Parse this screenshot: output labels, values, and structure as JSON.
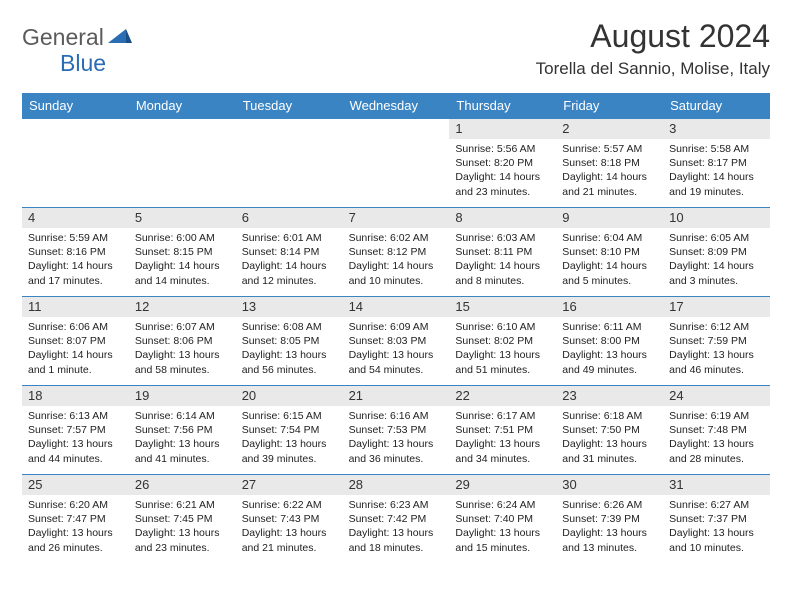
{
  "logo": {
    "general": "General",
    "blue": "Blue"
  },
  "title": "August 2024",
  "location": "Torella del Sannio, Molise, Italy",
  "colors": {
    "header_bg": "#3b84c4",
    "header_text": "#ffffff",
    "row_divider": "#3b84c4",
    "daynum_bg": "#e9e9e9",
    "logo_general": "#5b5b5b",
    "logo_blue": "#2a6db2",
    "body_text": "#222222",
    "page_bg": "#ffffff"
  },
  "daysOfWeek": [
    "Sunday",
    "Monday",
    "Tuesday",
    "Wednesday",
    "Thursday",
    "Friday",
    "Saturday"
  ],
  "weeks": [
    [
      {
        "empty": true
      },
      {
        "empty": true
      },
      {
        "empty": true
      },
      {
        "empty": true
      },
      {
        "num": "1",
        "sunrise": "Sunrise: 5:56 AM",
        "sunset": "Sunset: 8:20 PM",
        "day1": "Daylight: 14 hours",
        "day2": "and 23 minutes."
      },
      {
        "num": "2",
        "sunrise": "Sunrise: 5:57 AM",
        "sunset": "Sunset: 8:18 PM",
        "day1": "Daylight: 14 hours",
        "day2": "and 21 minutes."
      },
      {
        "num": "3",
        "sunrise": "Sunrise: 5:58 AM",
        "sunset": "Sunset: 8:17 PM",
        "day1": "Daylight: 14 hours",
        "day2": "and 19 minutes."
      }
    ],
    [
      {
        "num": "4",
        "sunrise": "Sunrise: 5:59 AM",
        "sunset": "Sunset: 8:16 PM",
        "day1": "Daylight: 14 hours",
        "day2": "and 17 minutes."
      },
      {
        "num": "5",
        "sunrise": "Sunrise: 6:00 AM",
        "sunset": "Sunset: 8:15 PM",
        "day1": "Daylight: 14 hours",
        "day2": "and 14 minutes."
      },
      {
        "num": "6",
        "sunrise": "Sunrise: 6:01 AM",
        "sunset": "Sunset: 8:14 PM",
        "day1": "Daylight: 14 hours",
        "day2": "and 12 minutes."
      },
      {
        "num": "7",
        "sunrise": "Sunrise: 6:02 AM",
        "sunset": "Sunset: 8:12 PM",
        "day1": "Daylight: 14 hours",
        "day2": "and 10 minutes."
      },
      {
        "num": "8",
        "sunrise": "Sunrise: 6:03 AM",
        "sunset": "Sunset: 8:11 PM",
        "day1": "Daylight: 14 hours",
        "day2": "and 8 minutes."
      },
      {
        "num": "9",
        "sunrise": "Sunrise: 6:04 AM",
        "sunset": "Sunset: 8:10 PM",
        "day1": "Daylight: 14 hours",
        "day2": "and 5 minutes."
      },
      {
        "num": "10",
        "sunrise": "Sunrise: 6:05 AM",
        "sunset": "Sunset: 8:09 PM",
        "day1": "Daylight: 14 hours",
        "day2": "and 3 minutes."
      }
    ],
    [
      {
        "num": "11",
        "sunrise": "Sunrise: 6:06 AM",
        "sunset": "Sunset: 8:07 PM",
        "day1": "Daylight: 14 hours",
        "day2": "and 1 minute."
      },
      {
        "num": "12",
        "sunrise": "Sunrise: 6:07 AM",
        "sunset": "Sunset: 8:06 PM",
        "day1": "Daylight: 13 hours",
        "day2": "and 58 minutes."
      },
      {
        "num": "13",
        "sunrise": "Sunrise: 6:08 AM",
        "sunset": "Sunset: 8:05 PM",
        "day1": "Daylight: 13 hours",
        "day2": "and 56 minutes."
      },
      {
        "num": "14",
        "sunrise": "Sunrise: 6:09 AM",
        "sunset": "Sunset: 8:03 PM",
        "day1": "Daylight: 13 hours",
        "day2": "and 54 minutes."
      },
      {
        "num": "15",
        "sunrise": "Sunrise: 6:10 AM",
        "sunset": "Sunset: 8:02 PM",
        "day1": "Daylight: 13 hours",
        "day2": "and 51 minutes."
      },
      {
        "num": "16",
        "sunrise": "Sunrise: 6:11 AM",
        "sunset": "Sunset: 8:00 PM",
        "day1": "Daylight: 13 hours",
        "day2": "and 49 minutes."
      },
      {
        "num": "17",
        "sunrise": "Sunrise: 6:12 AM",
        "sunset": "Sunset: 7:59 PM",
        "day1": "Daylight: 13 hours",
        "day2": "and 46 minutes."
      }
    ],
    [
      {
        "num": "18",
        "sunrise": "Sunrise: 6:13 AM",
        "sunset": "Sunset: 7:57 PM",
        "day1": "Daylight: 13 hours",
        "day2": "and 44 minutes."
      },
      {
        "num": "19",
        "sunrise": "Sunrise: 6:14 AM",
        "sunset": "Sunset: 7:56 PM",
        "day1": "Daylight: 13 hours",
        "day2": "and 41 minutes."
      },
      {
        "num": "20",
        "sunrise": "Sunrise: 6:15 AM",
        "sunset": "Sunset: 7:54 PM",
        "day1": "Daylight: 13 hours",
        "day2": "and 39 minutes."
      },
      {
        "num": "21",
        "sunrise": "Sunrise: 6:16 AM",
        "sunset": "Sunset: 7:53 PM",
        "day1": "Daylight: 13 hours",
        "day2": "and 36 minutes."
      },
      {
        "num": "22",
        "sunrise": "Sunrise: 6:17 AM",
        "sunset": "Sunset: 7:51 PM",
        "day1": "Daylight: 13 hours",
        "day2": "and 34 minutes."
      },
      {
        "num": "23",
        "sunrise": "Sunrise: 6:18 AM",
        "sunset": "Sunset: 7:50 PM",
        "day1": "Daylight: 13 hours",
        "day2": "and 31 minutes."
      },
      {
        "num": "24",
        "sunrise": "Sunrise: 6:19 AM",
        "sunset": "Sunset: 7:48 PM",
        "day1": "Daylight: 13 hours",
        "day2": "and 28 minutes."
      }
    ],
    [
      {
        "num": "25",
        "sunrise": "Sunrise: 6:20 AM",
        "sunset": "Sunset: 7:47 PM",
        "day1": "Daylight: 13 hours",
        "day2": "and 26 minutes."
      },
      {
        "num": "26",
        "sunrise": "Sunrise: 6:21 AM",
        "sunset": "Sunset: 7:45 PM",
        "day1": "Daylight: 13 hours",
        "day2": "and 23 minutes."
      },
      {
        "num": "27",
        "sunrise": "Sunrise: 6:22 AM",
        "sunset": "Sunset: 7:43 PM",
        "day1": "Daylight: 13 hours",
        "day2": "and 21 minutes."
      },
      {
        "num": "28",
        "sunrise": "Sunrise: 6:23 AM",
        "sunset": "Sunset: 7:42 PM",
        "day1": "Daylight: 13 hours",
        "day2": "and 18 minutes."
      },
      {
        "num": "29",
        "sunrise": "Sunrise: 6:24 AM",
        "sunset": "Sunset: 7:40 PM",
        "day1": "Daylight: 13 hours",
        "day2": "and 15 minutes."
      },
      {
        "num": "30",
        "sunrise": "Sunrise: 6:26 AM",
        "sunset": "Sunset: 7:39 PM",
        "day1": "Daylight: 13 hours",
        "day2": "and 13 minutes."
      },
      {
        "num": "31",
        "sunrise": "Sunrise: 6:27 AM",
        "sunset": "Sunset: 7:37 PM",
        "day1": "Daylight: 13 hours",
        "day2": "and 10 minutes."
      }
    ]
  ]
}
